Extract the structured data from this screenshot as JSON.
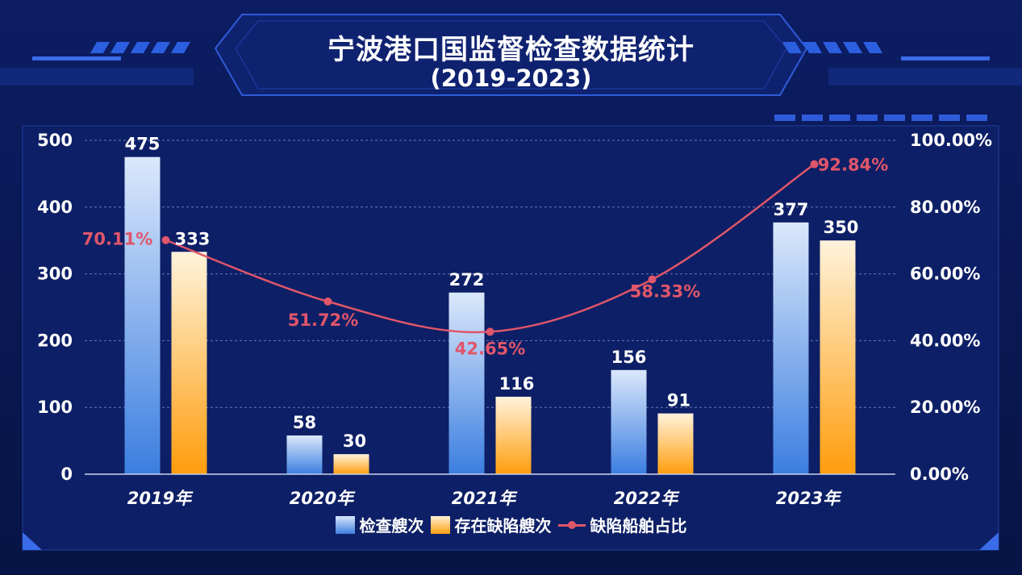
{
  "title": "宁波港口国监督检查数据统计",
  "subtitle": "(2019-2023)",
  "colors": {
    "series_inspections": "#3d7fe0",
    "series_defective": "#ff9f10",
    "line_ratio": "#e0566a",
    "background": "#0a1a57"
  },
  "chart_data": {
    "type": "bar",
    "categories": [
      "2019年",
      "2020年",
      "2021年",
      "2022年",
      "2023年"
    ],
    "series": [
      {
        "name": "检查艘次",
        "type": "bar",
        "axis": "left",
        "values": [
          475,
          58,
          272,
          156,
          377
        ],
        "labels": [
          "475",
          "58",
          "272",
          "156",
          "377"
        ]
      },
      {
        "name": "存在缺陷艘次",
        "type": "bar",
        "axis": "left",
        "values": [
          333,
          30,
          116,
          91,
          350
        ],
        "labels": [
          "333",
          "30",
          "116",
          "91",
          "350"
        ]
      },
      {
        "name": "缺陷船舶占比",
        "type": "line",
        "axis": "right",
        "values": [
          70.11,
          51.72,
          42.65,
          58.33,
          92.84
        ],
        "labels": [
          "70.11%",
          "51.72%",
          "42.65%",
          "58.33%",
          "92.84%"
        ]
      }
    ],
    "y_left": {
      "ylim": [
        0,
        500
      ],
      "ticks": [
        "0",
        "100",
        "200",
        "300",
        "400",
        "500"
      ]
    },
    "y_right": {
      "ylim": [
        0,
        100
      ],
      "ticks": [
        "0.00%",
        "20.00%",
        "40.00%",
        "60.00%",
        "80.00%",
        "100.00%"
      ]
    },
    "grid": true,
    "legend_position": "bottom"
  }
}
